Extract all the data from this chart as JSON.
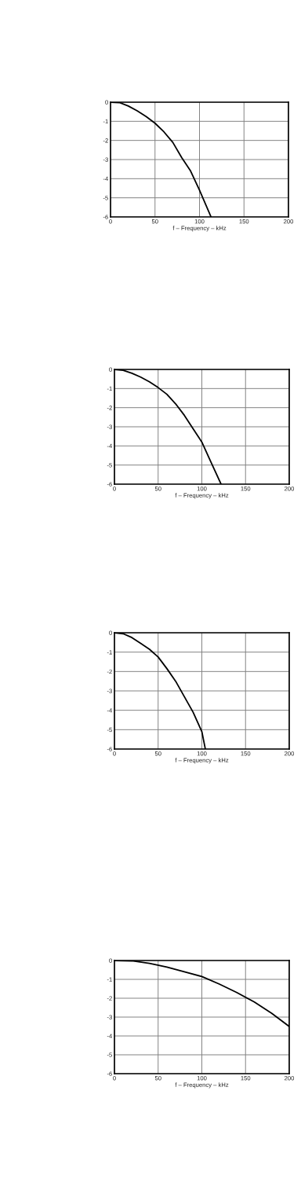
{
  "chart_data": [
    {
      "type": "line",
      "xlabel": "f – Frequency – kHz",
      "xlim": [
        0,
        200
      ],
      "ylim": [
        -6,
        0
      ],
      "xticks": [
        0,
        50,
        100,
        150,
        200
      ],
      "yticks": [
        -6,
        -5,
        -4,
        -3,
        -2,
        -1,
        0
      ],
      "grid": true,
      "color": "#000000",
      "x": [
        0,
        10,
        20,
        30,
        40,
        50,
        60,
        70,
        80,
        90,
        100,
        113
      ],
      "values": [
        0,
        -0.02,
        -0.2,
        -0.45,
        -0.75,
        -1.1,
        -1.55,
        -2.1,
        -2.9,
        -3.6,
        -4.6,
        -6
      ]
    },
    {
      "type": "line",
      "xlabel": "f – Frequency – kHz",
      "xlim": [
        0,
        200
      ],
      "ylim": [
        -6,
        0
      ],
      "xticks": [
        0,
        50,
        100,
        150,
        200
      ],
      "yticks": [
        -6,
        -5,
        -4,
        -3,
        -2,
        -1,
        0
      ],
      "grid": true,
      "color": "#000000",
      "x": [
        0,
        10,
        20,
        30,
        40,
        50,
        60,
        70,
        80,
        90,
        100,
        110,
        122
      ],
      "values": [
        0,
        -0.05,
        -0.2,
        -0.4,
        -0.65,
        -0.95,
        -1.3,
        -1.8,
        -2.4,
        -3.1,
        -3.8,
        -4.8,
        -6
      ]
    },
    {
      "type": "line",
      "xlabel": "f – Frequency – kHz",
      "xlim": [
        0,
        200
      ],
      "ylim": [
        -6,
        0
      ],
      "xticks": [
        0,
        50,
        100,
        150,
        200
      ],
      "yticks": [
        -6,
        -5,
        -4,
        -3,
        -2,
        -1,
        0
      ],
      "grid": true,
      "color": "#000000",
      "x": [
        0,
        10,
        20,
        30,
        40,
        50,
        60,
        70,
        80,
        90,
        100,
        104
      ],
      "values": [
        0,
        -0.05,
        -0.25,
        -0.55,
        -0.85,
        -1.25,
        -1.85,
        -2.5,
        -3.3,
        -4.1,
        -5.1,
        -6
      ]
    },
    {
      "type": "line",
      "xlabel": "f – Frequency – kHz",
      "xlim": [
        0,
        200
      ],
      "ylim": [
        -6,
        0
      ],
      "xticks": [
        0,
        50,
        100,
        150,
        200
      ],
      "yticks": [
        -6,
        -5,
        -4,
        -3,
        -2,
        -1,
        0
      ],
      "grid": true,
      "color": "#000000",
      "x": [
        0,
        20,
        40,
        60,
        80,
        100,
        120,
        140,
        160,
        180,
        200
      ],
      "values": [
        0,
        -0.02,
        -0.15,
        -0.35,
        -0.6,
        -0.85,
        -1.25,
        -1.7,
        -2.2,
        -2.8,
        -3.5
      ]
    }
  ]
}
